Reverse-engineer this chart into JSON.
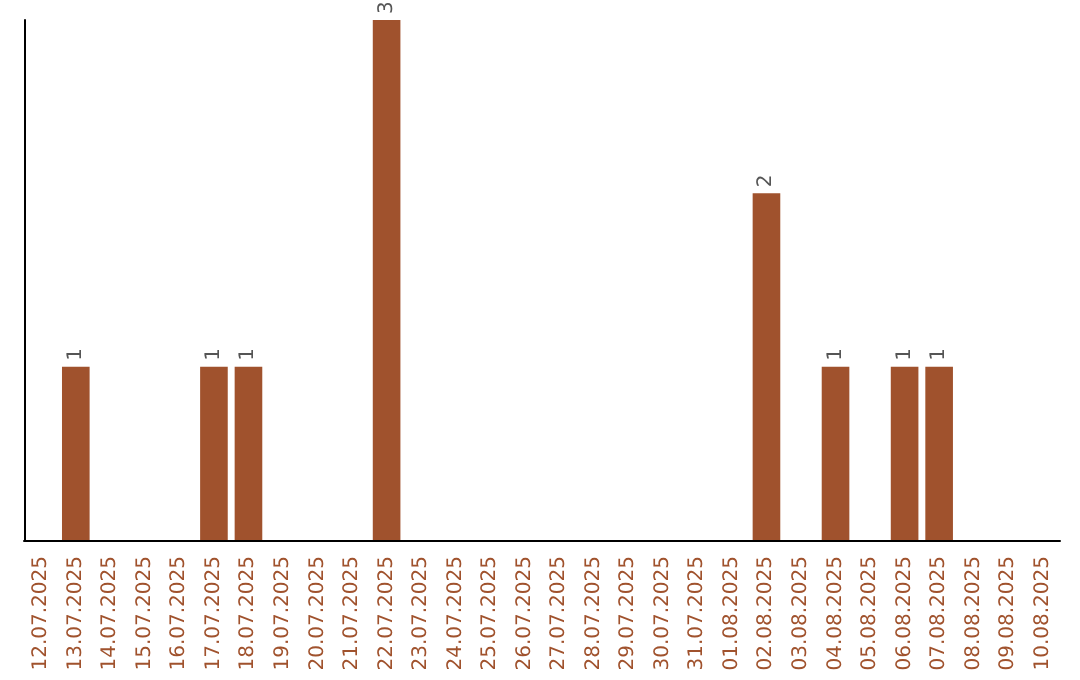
{
  "chart_data": {
    "type": "bar",
    "categories": [
      "12.07.2025",
      "13.07.2025",
      "14.07.2025",
      "15.07.2025",
      "16.07.2025",
      "17.07.2025",
      "18.07.2025",
      "19.07.2025",
      "20.07.2025",
      "21.07.2025",
      "22.07.2025",
      "23.07.2025",
      "24.07.2025",
      "25.07.2025",
      "26.07.2025",
      "27.07.2025",
      "28.07.2025",
      "29.07.2025",
      "30.07.2025",
      "31.07.2025",
      "01.08.2025",
      "02.08.2025",
      "03.08.2025",
      "04.08.2025",
      "05.08.2025",
      "06.08.2025",
      "07.08.2025",
      "08.08.2025",
      "09.08.2025",
      "10.08.2025"
    ],
    "values": [
      0,
      1,
      0,
      0,
      0,
      1,
      1,
      0,
      0,
      0,
      3,
      0,
      0,
      0,
      0,
      0,
      0,
      0,
      0,
      0,
      0,
      2,
      0,
      1,
      0,
      1,
      1,
      0,
      0,
      0
    ],
    "value_labels": [
      null,
      "1",
      null,
      null,
      null,
      "1",
      "1",
      null,
      null,
      null,
      "3",
      null,
      null,
      null,
      null,
      null,
      null,
      null,
      null,
      null,
      null,
      "2",
      null,
      "1",
      null,
      "1",
      "1",
      null,
      null,
      null
    ],
    "color": "#a0522d",
    "tick_labels": "x"
  }
}
